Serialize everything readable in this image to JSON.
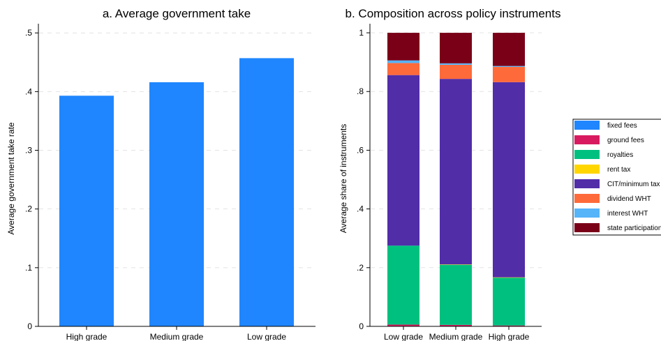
{
  "chart_data": [
    {
      "type": "bar",
      "title": "a. Average government take",
      "ylabel": "Average government take rate",
      "xlabel": "",
      "categories": [
        "High grade",
        "Medium grade",
        "Low grade"
      ],
      "values": [
        0.393,
        0.416,
        0.457
      ],
      "ylim": [
        0,
        0.5
      ],
      "yticks": [
        0,
        0.1,
        0.2,
        0.3,
        0.4,
        0.5
      ],
      "ytick_labels": [
        "0",
        ".1",
        ".2",
        ".3",
        ".4",
        ".5"
      ],
      "grid": true,
      "color": "#1f86ff"
    },
    {
      "type": "bar",
      "stacked": true,
      "title": "b. Composition across policy instruments",
      "ylabel": "Average share of instruments",
      "xlabel": "",
      "categories": [
        "Low grade",
        "Medium grade",
        "High grade"
      ],
      "ylim": [
        0,
        1
      ],
      "yticks": [
        0,
        0.2,
        0.4,
        0.6,
        0.8,
        1
      ],
      "ytick_labels": [
        "0",
        ".2",
        ".4",
        ".6",
        ".8",
        "1"
      ],
      "grid": true,
      "legend_position": "right",
      "series": [
        {
          "name": "fixed fees",
          "color": "#1f86ff",
          "values": [
            0.001,
            0.001,
            0.001
          ]
        },
        {
          "name": "ground fees",
          "color": "#d81b60",
          "values": [
            0.005,
            0.004,
            0.002
          ]
        },
        {
          "name": "royalties",
          "color": "#00c07f",
          "values": [
            0.269,
            0.205,
            0.163
          ]
        },
        {
          "name": "rent tax",
          "color": "#ffd600",
          "values": [
            0.0,
            0.001,
            0.001
          ]
        },
        {
          "name": "CIT/minimum tax",
          "color": "#512da8",
          "values": [
            0.581,
            0.632,
            0.665
          ]
        },
        {
          "name": "dividend WHT",
          "color": "#ff6a3a",
          "values": [
            0.041,
            0.048,
            0.052
          ]
        },
        {
          "name": "interest WHT",
          "color": "#56b4f8",
          "values": [
            0.009,
            0.005,
            0.003
          ]
        },
        {
          "name": "state participation",
          "color": "#7a0018",
          "values": [
            0.094,
            0.104,
            0.113
          ]
        }
      ]
    }
  ]
}
